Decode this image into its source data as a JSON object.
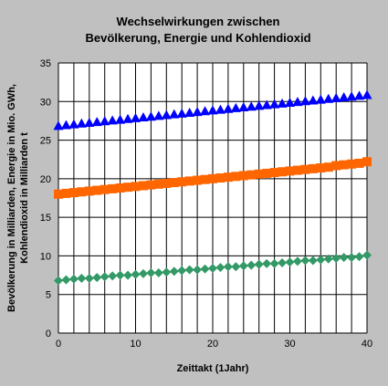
{
  "chart_data": {
    "type": "scatter",
    "title_lines": [
      "Wechselwirkungen zwischen",
      "Bevölkerung, Energie und Kohlendioxid"
    ],
    "xlabel": "Zeittakt (1Jahr)",
    "ylabel_lines": [
      "Bevölkerung in Milliarden, Energie in Mio. GWh,",
      "Kohlendioxid in Milliarden t"
    ],
    "xlim": [
      0,
      40
    ],
    "ylim": [
      0,
      35
    ],
    "x_ticks": [
      0,
      10,
      20,
      30,
      40
    ],
    "y_ticks": [
      0,
      5,
      10,
      15,
      20,
      25,
      30,
      35
    ],
    "x_grid_step": 2,
    "grid": true,
    "plot_background": "#ffffff",
    "frame_background": "#c0c0c0",
    "x": [
      0,
      1,
      2,
      3,
      4,
      5,
      6,
      7,
      8,
      9,
      10,
      11,
      12,
      13,
      14,
      15,
      16,
      17,
      18,
      19,
      20,
      21,
      22,
      23,
      24,
      25,
      26,
      27,
      28,
      29,
      30,
      31,
      32,
      33,
      34,
      35,
      36,
      37,
      38,
      39,
      40
    ],
    "series": [
      {
        "marker": "triangle",
        "color": "#0000ff",
        "values": [
          26.8,
          26.9,
          27.0,
          27.1,
          27.2,
          27.3,
          27.4,
          27.5,
          27.6,
          27.7,
          27.8,
          27.9,
          28.0,
          28.1,
          28.2,
          28.3,
          28.4,
          28.5,
          28.6,
          28.7,
          28.8,
          28.9,
          29.0,
          29.1,
          29.2,
          29.3,
          29.4,
          29.5,
          29.6,
          29.7,
          29.8,
          29.9,
          30.0,
          30.1,
          30.2,
          30.3,
          30.4,
          30.5,
          30.6,
          30.7,
          30.8
        ]
      },
      {
        "marker": "square",
        "color": "#ff6600",
        "values": [
          18.0,
          18.1,
          18.2,
          18.3,
          18.4,
          18.5,
          18.6,
          18.7,
          18.8,
          18.9,
          19.0,
          19.1,
          19.2,
          19.3,
          19.4,
          19.5,
          19.6,
          19.7,
          19.8,
          19.9,
          20.0,
          20.1,
          20.2,
          20.3,
          20.4,
          20.5,
          20.6,
          20.7,
          20.8,
          20.9,
          21.0,
          21.1,
          21.2,
          21.3,
          21.4,
          21.5,
          21.7,
          21.8,
          21.9,
          22.0,
          22.2
        ]
      },
      {
        "marker": "diamond",
        "color": "#339966",
        "values": [
          6.8,
          6.9,
          7.0,
          7.1,
          7.1,
          7.2,
          7.3,
          7.4,
          7.5,
          7.5,
          7.6,
          7.7,
          7.8,
          7.8,
          7.9,
          8.0,
          8.1,
          8.2,
          8.2,
          8.3,
          8.4,
          8.5,
          8.6,
          8.6,
          8.7,
          8.8,
          8.9,
          9.0,
          9.0,
          9.1,
          9.2,
          9.3,
          9.4,
          9.4,
          9.5,
          9.6,
          9.7,
          9.8,
          9.8,
          9.9,
          10.1
        ]
      }
    ]
  }
}
